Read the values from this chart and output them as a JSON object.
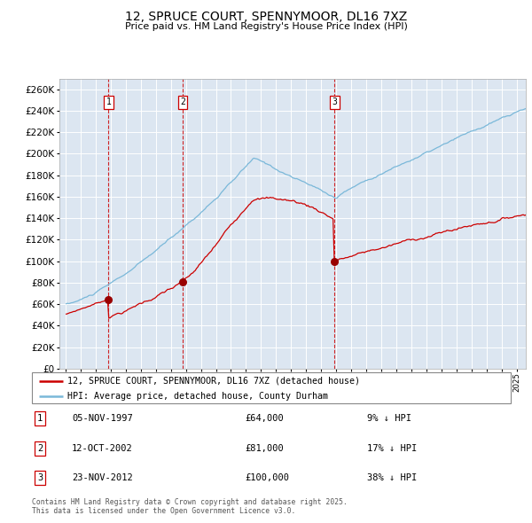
{
  "title": "12, SPRUCE COURT, SPENNYMOOR, DL16 7XZ",
  "subtitle": "Price paid vs. HM Land Registry's House Price Index (HPI)",
  "background_color": "#dce6f1",
  "plot_bg_color": "#dce6f1",
  "hpi_color": "#7ab8d9",
  "price_color": "#cc0000",
  "grid_color": "#ffffff",
  "sale_marker_color": "#990000",
  "vline_color": "#cc0000",
  "sales": [
    {
      "date_num": 1997.85,
      "price": 64000,
      "label": "1",
      "date_str": "05-NOV-1997",
      "pct": "9% ↓ HPI"
    },
    {
      "date_num": 2002.78,
      "price": 81000,
      "label": "2",
      "date_str": "12-OCT-2002",
      "pct": "17% ↓ HPI"
    },
    {
      "date_num": 2012.9,
      "price": 100000,
      "label": "3",
      "date_str": "23-NOV-2012",
      "pct": "38% ↓ HPI"
    }
  ],
  "legend_label_price": "12, SPRUCE COURT, SPENNYMOOR, DL16 7XZ (detached house)",
  "legend_label_hpi": "HPI: Average price, detached house, County Durham",
  "footer": "Contains HM Land Registry data © Crown copyright and database right 2025.\nThis data is licensed under the Open Government Licence v3.0.",
  "ylim": [
    0,
    270000
  ],
  "ytick_step": 20000,
  "xlim_left": 1994.6,
  "xlim_right": 2025.6
}
